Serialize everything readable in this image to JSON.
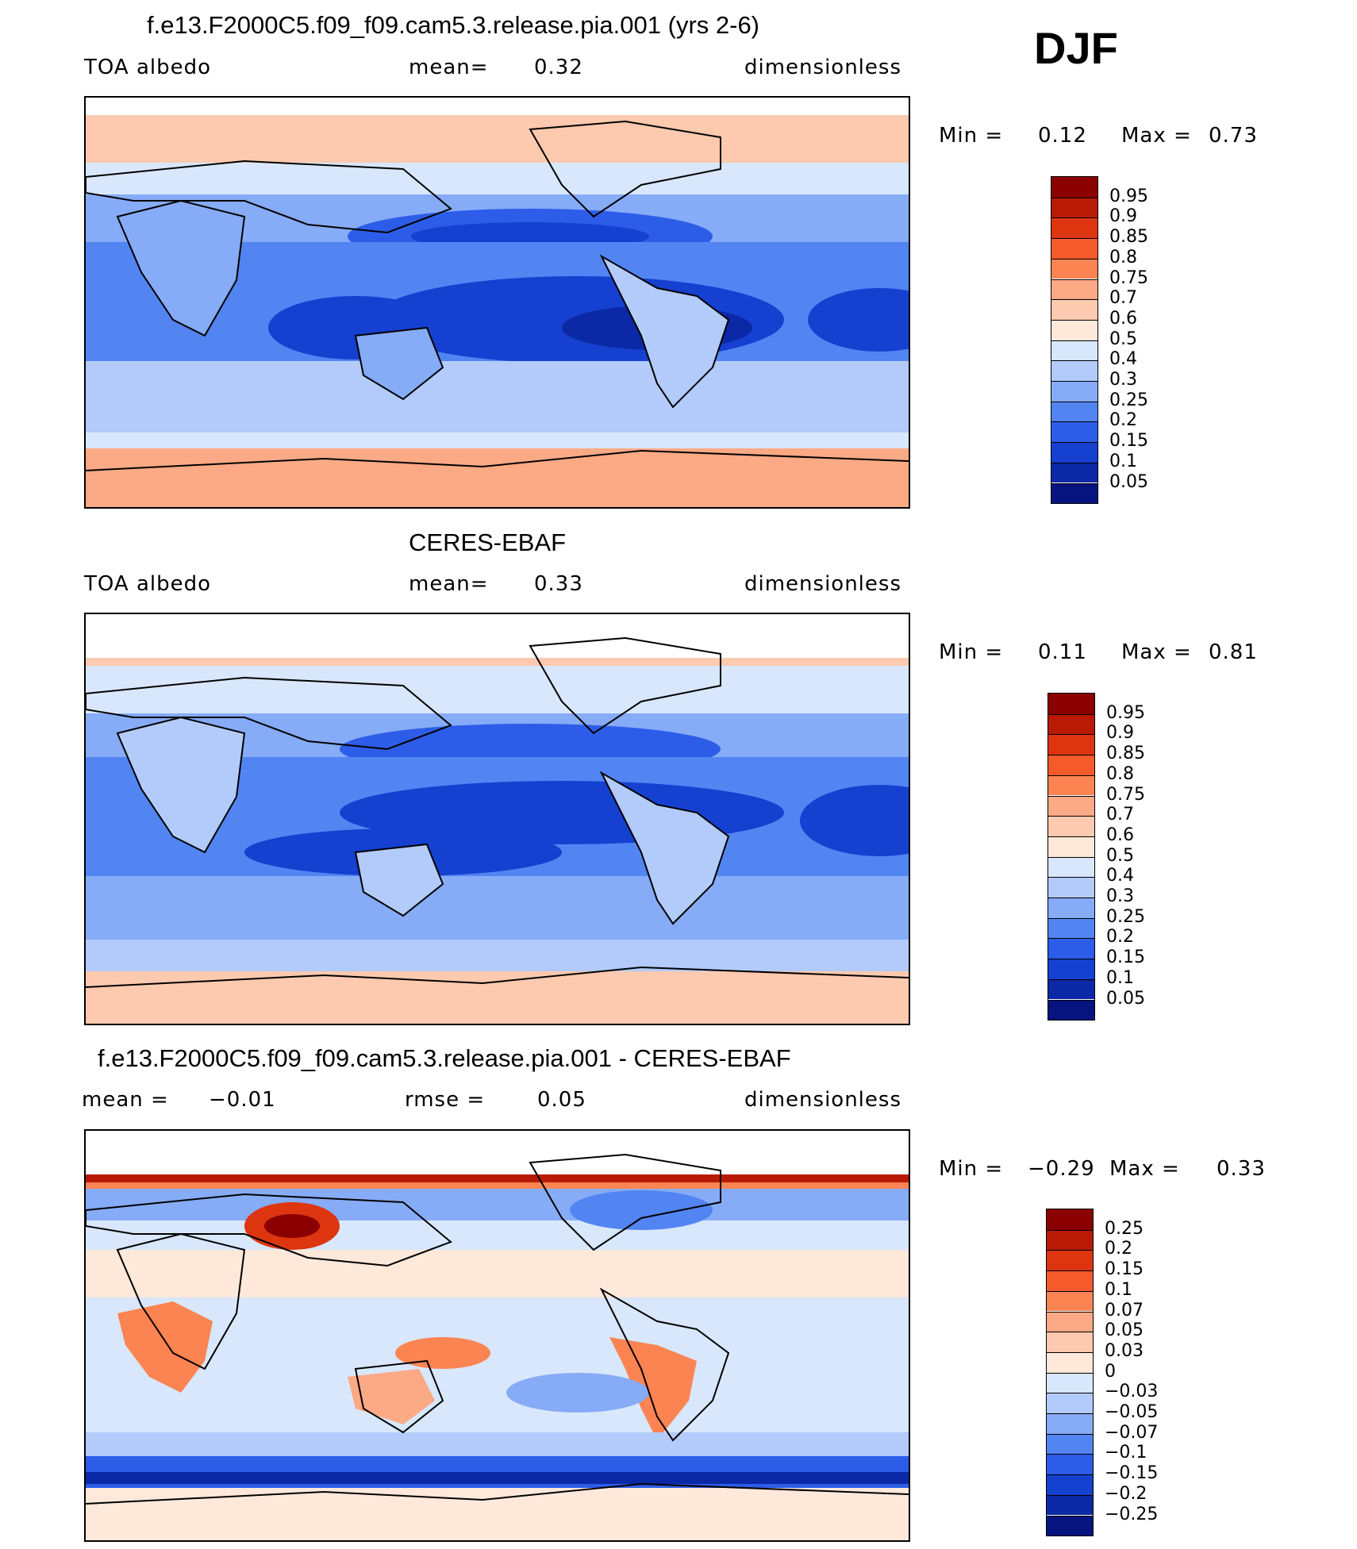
{
  "season": "DJF",
  "panels": [
    {
      "title": "f.e13.F2000C5.f09_f09.cam5.3.release.pia.001 (yrs 2-6)",
      "left_label": "TOA  albedo",
      "center_label": "mean=",
      "center_value": "0.32",
      "right_label": "dimensionless",
      "min_label": "Min  =",
      "min_value": "0.12",
      "max_label": "Max  =",
      "max_value": "0.73",
      "levels": [
        "0.95",
        "0.9",
        "0.85",
        "0.8",
        "0.75",
        "0.7",
        "0.6",
        "0.5",
        "0.4",
        "0.3",
        "0.25",
        "0.2",
        "0.15",
        "0.1",
        "0.05"
      ],
      "colors": [
        "#8b0000",
        "#b81a05",
        "#dc3510",
        "#f55a2a",
        "#fb8452",
        "#fca985",
        "#fdc9af",
        "#fde8da",
        "#d8e7fb",
        "#b2cbfa",
        "#86abf7",
        "#5285f2",
        "#2d5de8",
        "#1540d0",
        "#0b28a6",
        "#061480"
      ]
    },
    {
      "title": "CERES-EBAF",
      "left_label": "TOA  albedo",
      "center_label": "mean=",
      "center_value": "0.33",
      "right_label": "dimensionless",
      "min_label": "Min  =",
      "min_value": "0.11",
      "max_label": "Max  =",
      "max_value": "0.81",
      "levels": [
        "0.95",
        "0.9",
        "0.85",
        "0.8",
        "0.75",
        "0.7",
        "0.6",
        "0.5",
        "0.4",
        "0.3",
        "0.25",
        "0.2",
        "0.15",
        "0.1",
        "0.05"
      ],
      "colors": [
        "#8b0000",
        "#b81a05",
        "#dc3510",
        "#f55a2a",
        "#fb8452",
        "#fca985",
        "#fdc9af",
        "#fde8da",
        "#d8e7fb",
        "#b2cbfa",
        "#86abf7",
        "#5285f2",
        "#2d5de8",
        "#1540d0",
        "#0b28a6",
        "#061480"
      ]
    },
    {
      "title": "f.e13.F2000C5.f09_f09.cam5.3.release.pia.001 - CERES-EBAF",
      "left_label": "mean  =",
      "left_value": "−0.01",
      "center_label": "rmse  =",
      "center_value": "0.05",
      "right_label": "dimensionless",
      "min_label": "Min  =",
      "min_value": "−0.29",
      "max_label": "Max  =",
      "max_value": "0.33",
      "levels": [
        "0.25",
        "0.2",
        "0.15",
        "0.1",
        "0.07",
        "0.05",
        "0.03",
        "0",
        "−0.03",
        "−0.05",
        "−0.07",
        "−0.1",
        "−0.15",
        "−0.2",
        "−0.25"
      ],
      "colors": [
        "#8b0000",
        "#b81a05",
        "#dc3510",
        "#f55a2a",
        "#fb8452",
        "#fca985",
        "#fdc9af",
        "#fde8da",
        "#d8e7fb",
        "#b2cbfa",
        "#86abf7",
        "#5285f2",
        "#2d5de8",
        "#1540d0",
        "#0b28a6",
        "#061480"
      ]
    }
  ]
}
